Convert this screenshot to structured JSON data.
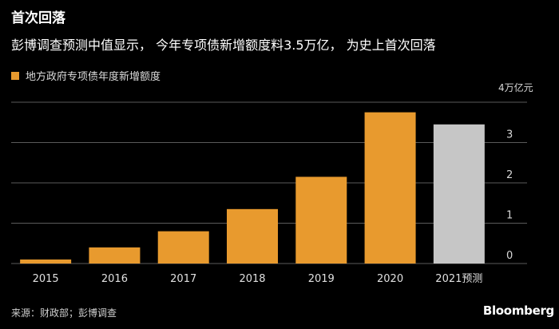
{
  "header": {
    "title": "首次回落",
    "subtitle": "彭博调查预测中值显示，  今年专项债新增额度料3.5万亿，  为史上首次回落"
  },
  "footer": {
    "source": "来源：财政部；彭博调查",
    "brand": "Bloomberg"
  },
  "colors": {
    "background": "#000000",
    "bar": "#e89a2e",
    "forecast_bar": "#c6c6c6",
    "grid": "#5a5a5a",
    "text": "#ffffff"
  },
  "chart_data": {
    "type": "bar",
    "title": "首次回落",
    "legend": [
      "地方政府专项债年度新增额度"
    ],
    "unit_label": "4万亿元",
    "categories": [
      "2015",
      "2016",
      "2017",
      "2018",
      "2019",
      "2020",
      "2021预测"
    ],
    "values": [
      0.1,
      0.4,
      0.8,
      1.35,
      2.15,
      3.75,
      3.45
    ],
    "forecast": [
      false,
      false,
      false,
      false,
      false,
      false,
      true
    ],
    "ylim": [
      0,
      4
    ],
    "yticks": [
      0,
      1,
      2,
      3
    ],
    "ytick_labels": [
      "0",
      "1",
      "2",
      "3"
    ],
    "xlabel": "",
    "ylabel": "万亿元"
  }
}
